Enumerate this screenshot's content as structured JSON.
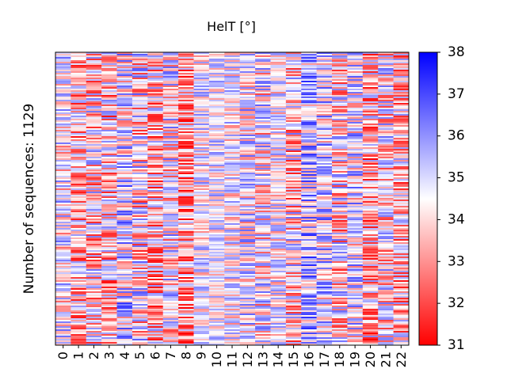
{
  "chart_data": {
    "type": "heatmap",
    "title": "HelT [°]",
    "xlabel": "",
    "ylabel": "Number of sequences: 1129",
    "x_positions": [
      "0",
      "1",
      "2",
      "3",
      "4",
      "5",
      "6",
      "7",
      "8",
      "9",
      "10",
      "11",
      "12",
      "13",
      "14",
      "15",
      "16",
      "17",
      "18",
      "19",
      "20",
      "21",
      "22"
    ],
    "n_sequences": 1129,
    "colorbar": {
      "min": 31,
      "max": 38,
      "ticks": [
        "31",
        "32",
        "33",
        "34",
        "35",
        "36",
        "37",
        "38"
      ],
      "colormap": "bwr",
      "low_color": "#ff0000",
      "mid_color": "#ffffff",
      "high_color": "#0000ff"
    },
    "column_mean_helt": [
      34.5,
      33.6,
      34.0,
      33.8,
      34.9,
      34.2,
      33.7,
      34.3,
      33.2,
      34.6,
      34.7,
      34.5,
      34.6,
      34.3,
      34.5,
      34.0,
      35.3,
      34.9,
      34.0,
      34.7,
      33.6,
      34.2,
      33.7
    ],
    "column_spread_helt": [
      1.3,
      1.5,
      1.6,
      1.6,
      1.5,
      1.7,
      1.6,
      1.5,
      1.5,
      1.1,
      1.0,
      1.1,
      1.3,
      1.5,
      1.1,
      1.6,
      1.4,
      1.4,
      1.6,
      1.4,
      1.6,
      1.5,
      1.5
    ]
  }
}
